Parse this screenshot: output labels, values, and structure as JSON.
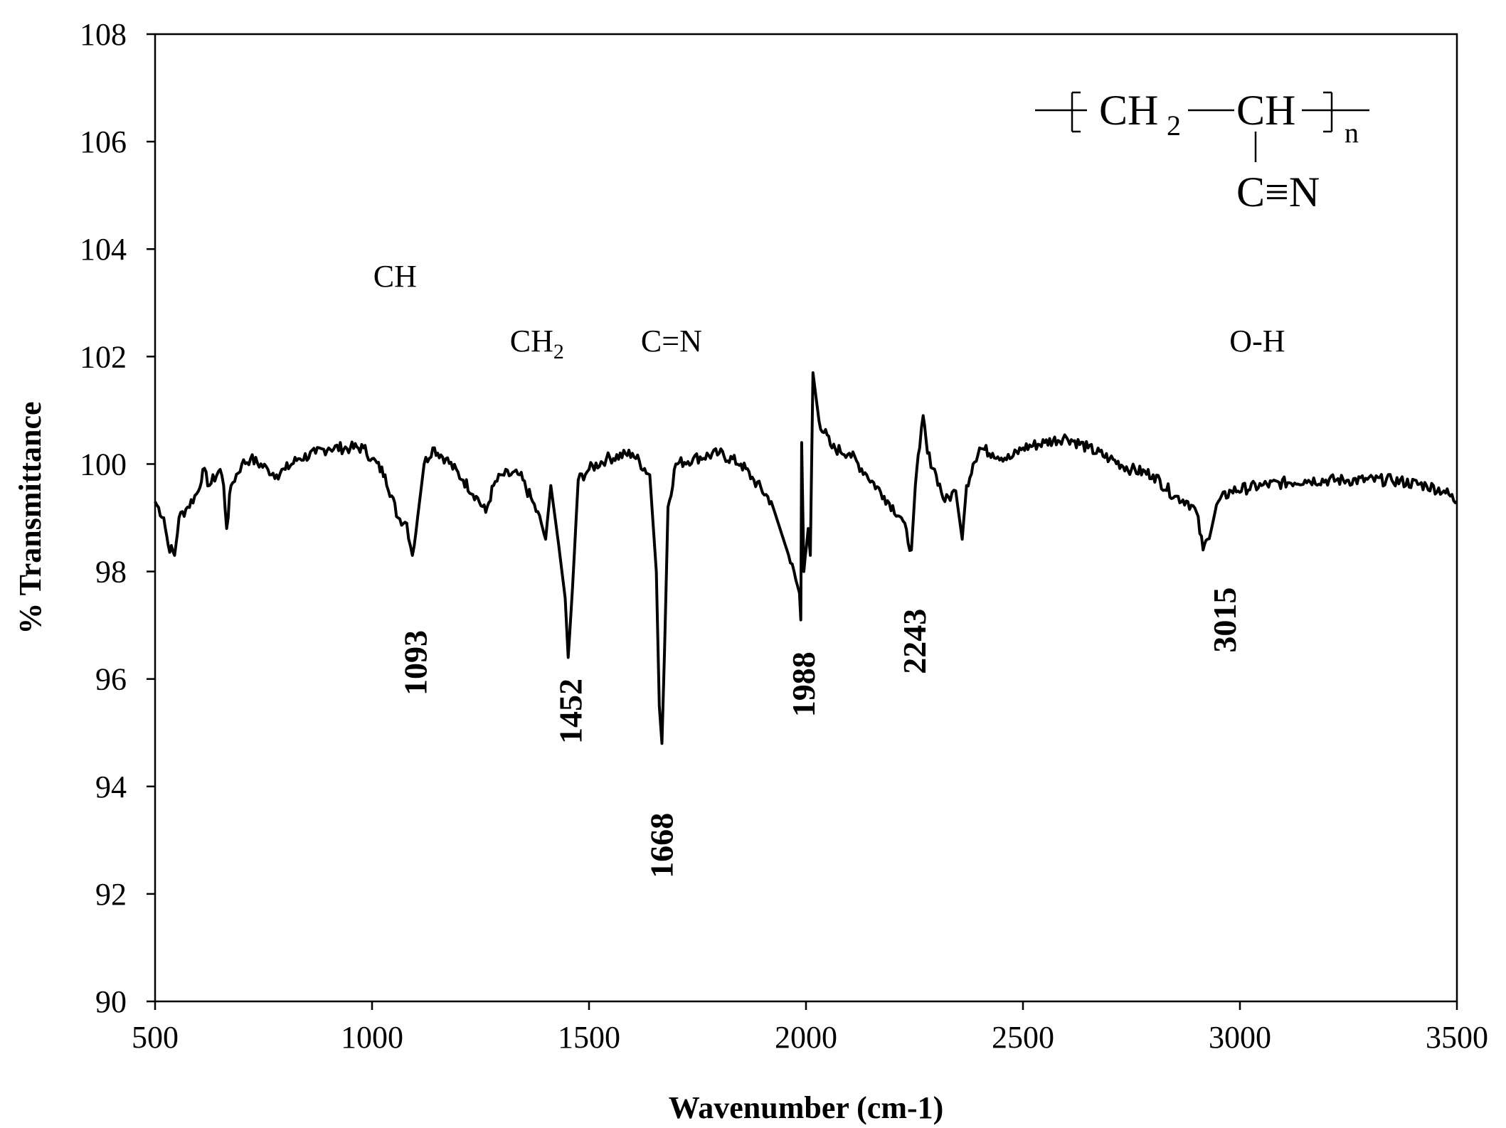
{
  "chart_data": {
    "type": "line",
    "title": "",
    "xlabel": "Wavenumber (cm-1)",
    "ylabel": "% Transmittance",
    "xlim": [
      500,
      3500
    ],
    "ylim": [
      90,
      108
    ],
    "x_ticks": [
      500,
      1000,
      1500,
      2000,
      2500,
      3000,
      3500
    ],
    "y_ticks": [
      90,
      92,
      94,
      96,
      98,
      100,
      102,
      104,
      106,
      108
    ],
    "grid": false,
    "legend": "none",
    "series": [
      {
        "color": "#000000",
        "points": [
          [
            500,
            99.3
          ],
          [
            520,
            99.0
          ],
          [
            530,
            98.5
          ],
          [
            545,
            98.3
          ],
          [
            555,
            99.0
          ],
          [
            575,
            99.2
          ],
          [
            600,
            99.5
          ],
          [
            610,
            99.9
          ],
          [
            625,
            99.6
          ],
          [
            650,
            99.9
          ],
          [
            658,
            99.6
          ],
          [
            665,
            98.8
          ],
          [
            675,
            99.6
          ],
          [
            700,
            100.0
          ],
          [
            720,
            100.1
          ],
          [
            760,
            99.9
          ],
          [
            780,
            99.8
          ],
          [
            800,
            99.9
          ],
          [
            830,
            100.1
          ],
          [
            870,
            100.2
          ],
          [
            900,
            100.3
          ],
          [
            950,
            100.3
          ],
          [
            980,
            100.3
          ],
          [
            1000,
            100.1
          ],
          [
            1030,
            99.8
          ],
          [
            1060,
            99.0
          ],
          [
            1080,
            98.9
          ],
          [
            1093,
            98.3
          ],
          [
            1105,
            99.0
          ],
          [
            1120,
            100.0
          ],
          [
            1140,
            100.3
          ],
          [
            1170,
            100.1
          ],
          [
            1210,
            99.7
          ],
          [
            1240,
            99.4
          ],
          [
            1262,
            99.1
          ],
          [
            1280,
            99.6
          ],
          [
            1300,
            99.8
          ],
          [
            1340,
            99.8
          ],
          [
            1370,
            99.3
          ],
          [
            1390,
            98.9
          ],
          [
            1400,
            98.6
          ],
          [
            1412,
            99.6
          ],
          [
            1430,
            98.5
          ],
          [
            1445,
            97.5
          ],
          [
            1452,
            96.4
          ],
          [
            1462,
            97.7
          ],
          [
            1475,
            99.7
          ],
          [
            1500,
            99.9
          ],
          [
            1540,
            100.1
          ],
          [
            1600,
            100.2
          ],
          [
            1640,
            99.8
          ],
          [
            1655,
            98.0
          ],
          [
            1662,
            95.5
          ],
          [
            1668,
            94.8
          ],
          [
            1674,
            96.5
          ],
          [
            1682,
            99.2
          ],
          [
            1700,
            100.0
          ],
          [
            1740,
            100.1
          ],
          [
            1800,
            100.2
          ],
          [
            1850,
            100.0
          ],
          [
            1880,
            99.7
          ],
          [
            1920,
            99.3
          ],
          [
            1960,
            98.3
          ],
          [
            1985,
            97.6
          ],
          [
            1988,
            97.1
          ],
          [
            1990,
            100.4
          ],
          [
            1995,
            98.0
          ],
          [
            2005,
            98.8
          ],
          [
            2010,
            98.3
          ],
          [
            2016,
            101.7
          ],
          [
            2030,
            100.8
          ],
          [
            2060,
            100.3
          ],
          [
            2100,
            100.2
          ],
          [
            2140,
            99.8
          ],
          [
            2180,
            99.4
          ],
          [
            2220,
            99.0
          ],
          [
            2243,
            98.4
          ],
          [
            2252,
            99.6
          ],
          [
            2262,
            100.3
          ],
          [
            2270,
            100.9
          ],
          [
            2280,
            100.2
          ],
          [
            2300,
            99.8
          ],
          [
            2320,
            99.3
          ],
          [
            2345,
            99.5
          ],
          [
            2360,
            98.6
          ],
          [
            2370,
            99.6
          ],
          [
            2385,
            100.0
          ],
          [
            2400,
            100.3
          ],
          [
            2430,
            100.2
          ],
          [
            2470,
            100.1
          ],
          [
            2500,
            100.3
          ],
          [
            2550,
            100.4
          ],
          [
            2600,
            100.5
          ],
          [
            2650,
            100.3
          ],
          [
            2700,
            100.1
          ],
          [
            2750,
            99.9
          ],
          [
            2800,
            99.8
          ],
          [
            2850,
            99.4
          ],
          [
            2880,
            99.3
          ],
          [
            2900,
            99.1
          ],
          [
            2915,
            98.4
          ],
          [
            2925,
            98.6
          ],
          [
            2950,
            99.3
          ],
          [
            2980,
            99.5
          ],
          [
            3050,
            99.6
          ],
          [
            3150,
            99.7
          ],
          [
            3250,
            99.7
          ],
          [
            3350,
            99.7
          ],
          [
            3430,
            99.6
          ],
          [
            3470,
            99.5
          ],
          [
            3500,
            99.3
          ]
        ]
      }
    ],
    "annotations": {
      "groups": [
        {
          "text": "CH",
          "x": 1053,
          "y": 103.3
        },
        {
          "text": "CH2",
          "x": 1380,
          "y": 102.1
        },
        {
          "text": "C=N",
          "x": 1690,
          "y": 102.1
        },
        {
          "text": "O-H",
          "x": 3040,
          "y": 102.1
        }
      ],
      "peaks": [
        {
          "text": "1093",
          "x": 1125,
          "y": 96.3
        },
        {
          "text": "1452",
          "x": 1483,
          "y": 95.4
        },
        {
          "text": "1668",
          "x": 1693,
          "y": 92.9
        },
        {
          "text": "1988",
          "x": 2020,
          "y": 95.9
        },
        {
          "text": "2243",
          "x": 2275,
          "y": 96.7
        },
        {
          "text": "3015",
          "x": 2990,
          "y": 97.1
        }
      ]
    },
    "formula": {
      "main": "CH",
      "sub": "2",
      "main2": "CH",
      "n": "n",
      "nitrile": "C≡N"
    }
  }
}
